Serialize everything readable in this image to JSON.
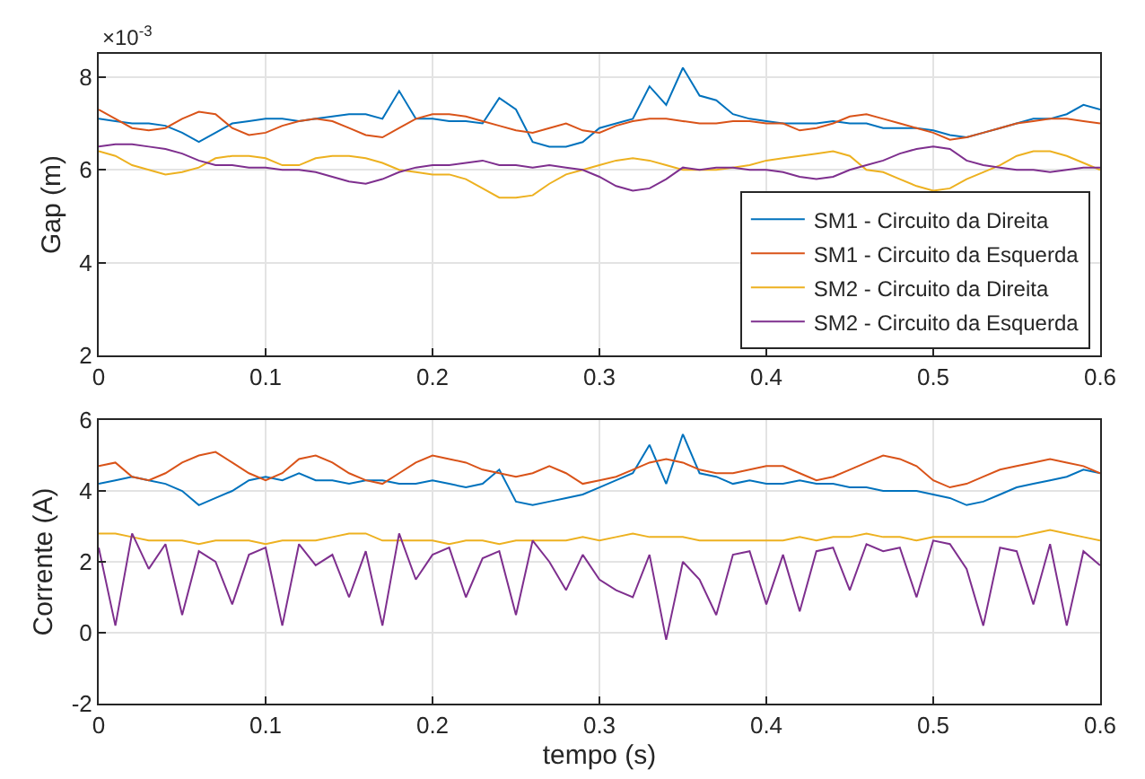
{
  "chart_data": [
    {
      "type": "line",
      "ylabel": "Gap (m)",
      "annotations": [
        "×10$^{-3}$"
      ],
      "x": [
        0,
        0.01,
        0.02,
        0.03,
        0.04,
        0.05,
        0.06,
        0.07,
        0.08,
        0.09,
        0.1,
        0.11,
        0.12,
        0.13,
        0.14,
        0.15,
        0.16,
        0.17,
        0.18,
        0.19,
        0.2,
        0.21,
        0.22,
        0.23,
        0.24,
        0.25,
        0.26,
        0.27,
        0.28,
        0.29,
        0.3,
        0.31,
        0.32,
        0.33,
        0.34,
        0.35,
        0.36,
        0.37,
        0.38,
        0.39,
        0.4,
        0.41,
        0.42,
        0.43,
        0.44,
        0.45,
        0.46,
        0.47,
        0.48,
        0.49,
        0.5,
        0.51,
        0.52,
        0.53,
        0.54,
        0.55,
        0.56,
        0.57,
        0.58,
        0.59,
        0.6
      ],
      "series": [
        {
          "name": "SM1 - Circuito da Direita",
          "color": "#0072bd",
          "values": [
            7.1,
            7.05,
            7.0,
            7.0,
            6.95,
            6.8,
            6.6,
            6.8,
            7.0,
            7.05,
            7.1,
            7.1,
            7.05,
            7.1,
            7.15,
            7.2,
            7.2,
            7.1,
            7.7,
            7.1,
            7.1,
            7.05,
            7.05,
            7.0,
            7.55,
            7.3,
            6.6,
            6.5,
            6.5,
            6.6,
            6.9,
            7.0,
            7.1,
            7.8,
            7.4,
            8.2,
            7.6,
            7.5,
            7.2,
            7.1,
            7.05,
            7.0,
            7.0,
            7.0,
            7.05,
            7.0,
            7.0,
            6.9,
            6.9,
            6.9,
            6.85,
            6.75,
            6.7,
            6.8,
            6.9,
            7.0,
            7.1,
            7.1,
            7.2,
            7.4,
            7.3
          ]
        },
        {
          "name": "SM1 - Circuito da Esquerda",
          "color": "#d95319",
          "values": [
            7.3,
            7.1,
            6.9,
            6.85,
            6.9,
            7.1,
            7.25,
            7.2,
            6.9,
            6.75,
            6.8,
            6.95,
            7.05,
            7.1,
            7.05,
            6.9,
            6.75,
            6.7,
            6.9,
            7.1,
            7.2,
            7.2,
            7.15,
            7.05,
            6.95,
            6.85,
            6.8,
            6.9,
            7.0,
            6.85,
            6.8,
            6.95,
            7.05,
            7.1,
            7.1,
            7.05,
            7.0,
            7.0,
            7.05,
            7.05,
            7.0,
            7.0,
            6.85,
            6.9,
            7.0,
            7.15,
            7.2,
            7.1,
            7.0,
            6.9,
            6.8,
            6.65,
            6.7,
            6.8,
            6.9,
            7.0,
            7.05,
            7.1,
            7.1,
            7.05,
            7.0
          ]
        },
        {
          "name": "SM2 - Circuito da Direita",
          "color": "#edb120",
          "values": [
            6.4,
            6.3,
            6.1,
            6.0,
            5.9,
            5.95,
            6.05,
            6.25,
            6.3,
            6.3,
            6.25,
            6.1,
            6.1,
            6.25,
            6.3,
            6.3,
            6.25,
            6.15,
            6.0,
            5.95,
            5.9,
            5.9,
            5.8,
            5.6,
            5.4,
            5.4,
            5.45,
            5.7,
            5.9,
            6.0,
            6.1,
            6.2,
            6.25,
            6.2,
            6.1,
            6.0,
            6.0,
            6.0,
            6.05,
            6.1,
            6.2,
            6.25,
            6.3,
            6.35,
            6.4,
            6.3,
            6.0,
            5.95,
            5.8,
            5.65,
            5.55,
            5.6,
            5.8,
            5.95,
            6.1,
            6.3,
            6.4,
            6.4,
            6.3,
            6.15,
            6.0
          ]
        },
        {
          "name": "SM2 - Circuito da Esquerda",
          "color": "#7e2f8e",
          "values": [
            6.5,
            6.55,
            6.55,
            6.5,
            6.45,
            6.35,
            6.2,
            6.1,
            6.1,
            6.05,
            6.05,
            6.0,
            6.0,
            5.95,
            5.85,
            5.75,
            5.7,
            5.8,
            5.95,
            6.05,
            6.1,
            6.1,
            6.15,
            6.2,
            6.1,
            6.1,
            6.05,
            6.1,
            6.05,
            6.0,
            5.85,
            5.65,
            5.55,
            5.6,
            5.8,
            6.05,
            6.0,
            6.05,
            6.05,
            6.0,
            6.0,
            5.95,
            5.85,
            5.8,
            5.85,
            6.0,
            6.1,
            6.2,
            6.35,
            6.45,
            6.5,
            6.45,
            6.2,
            6.1,
            6.05,
            6.0,
            6.0,
            5.95,
            6.0,
            6.05,
            6.05
          ]
        }
      ],
      "xlim": [
        0,
        0.6
      ],
      "xticks": [
        0,
        0.1,
        0.2,
        0.3,
        0.4,
        0.5,
        0.6
      ],
      "ylim": [
        2,
        8.5
      ],
      "yticks": [
        2,
        4,
        6,
        8
      ],
      "grid": true,
      "legend": "bottom right",
      "marker": "none",
      "line_style": "solid"
    },
    {
      "type": "line",
      "xlabel": "tempo (s)",
      "ylabel": "Corrente (A)",
      "x": [
        0,
        0.01,
        0.02,
        0.03,
        0.04,
        0.05,
        0.06,
        0.07,
        0.08,
        0.09,
        0.1,
        0.11,
        0.12,
        0.13,
        0.14,
        0.15,
        0.16,
        0.17,
        0.18,
        0.19,
        0.2,
        0.21,
        0.22,
        0.23,
        0.24,
        0.25,
        0.26,
        0.27,
        0.28,
        0.29,
        0.3,
        0.31,
        0.32,
        0.33,
        0.34,
        0.35,
        0.36,
        0.37,
        0.38,
        0.39,
        0.4,
        0.41,
        0.42,
        0.43,
        0.44,
        0.45,
        0.46,
        0.47,
        0.48,
        0.49,
        0.5,
        0.51,
        0.52,
        0.53,
        0.54,
        0.55,
        0.56,
        0.57,
        0.58,
        0.59,
        0.6
      ],
      "series": [
        {
          "color": "#0072bd",
          "values": [
            4.2,
            4.3,
            4.4,
            4.3,
            4.2,
            4.0,
            3.6,
            3.8,
            4.0,
            4.3,
            4.4,
            4.3,
            4.5,
            4.3,
            4.3,
            4.2,
            4.3,
            4.3,
            4.2,
            4.2,
            4.3,
            4.2,
            4.1,
            4.2,
            4.6,
            3.7,
            3.6,
            3.7,
            3.8,
            3.9,
            4.1,
            4.3,
            4.5,
            5.3,
            4.2,
            5.6,
            4.5,
            4.4,
            4.2,
            4.3,
            4.2,
            4.2,
            4.3,
            4.2,
            4.2,
            4.1,
            4.1,
            4.0,
            4.0,
            4.0,
            3.9,
            3.8,
            3.6,
            3.7,
            3.9,
            4.1,
            4.2,
            4.3,
            4.4,
            4.6,
            4.5
          ]
        },
        {
          "color": "#d95319",
          "values": [
            4.7,
            4.8,
            4.4,
            4.3,
            4.5,
            4.8,
            5.0,
            5.1,
            4.8,
            4.5,
            4.3,
            4.5,
            4.9,
            5.0,
            4.8,
            4.5,
            4.3,
            4.2,
            4.5,
            4.8,
            5.0,
            4.9,
            4.8,
            4.6,
            4.5,
            4.4,
            4.5,
            4.7,
            4.5,
            4.2,
            4.3,
            4.4,
            4.6,
            4.8,
            4.9,
            4.8,
            4.6,
            4.5,
            4.5,
            4.6,
            4.7,
            4.7,
            4.5,
            4.3,
            4.4,
            4.6,
            4.8,
            5.0,
            4.9,
            4.7,
            4.3,
            4.1,
            4.2,
            4.4,
            4.6,
            4.7,
            4.8,
            4.9,
            4.8,
            4.7,
            4.5
          ]
        },
        {
          "color": "#edb120",
          "values": [
            2.8,
            2.8,
            2.7,
            2.6,
            2.6,
            2.6,
            2.5,
            2.6,
            2.6,
            2.6,
            2.5,
            2.6,
            2.6,
            2.6,
            2.7,
            2.8,
            2.8,
            2.6,
            2.6,
            2.6,
            2.6,
            2.5,
            2.6,
            2.6,
            2.5,
            2.6,
            2.6,
            2.6,
            2.6,
            2.7,
            2.6,
            2.7,
            2.8,
            2.7,
            2.7,
            2.7,
            2.6,
            2.6,
            2.6,
            2.6,
            2.6,
            2.6,
            2.7,
            2.6,
            2.7,
            2.7,
            2.8,
            2.7,
            2.7,
            2.6,
            2.7,
            2.7,
            2.7,
            2.7,
            2.7,
            2.7,
            2.8,
            2.9,
            2.8,
            2.7,
            2.6
          ]
        },
        {
          "color": "#7e2f8e",
          "values": [
            2.4,
            0.2,
            2.8,
            1.8,
            2.5,
            0.5,
            2.3,
            2.0,
            0.8,
            2.2,
            2.4,
            0.2,
            2.5,
            1.9,
            2.2,
            1.0,
            2.3,
            0.2,
            2.8,
            1.5,
            2.2,
            2.4,
            1.0,
            2.1,
            2.3,
            0.5,
            2.6,
            2.0,
            1.2,
            2.2,
            1.5,
            1.2,
            1.0,
            2.2,
            -0.2,
            2.0,
            1.5,
            0.5,
            2.2,
            2.3,
            0.8,
            2.2,
            0.6,
            2.3,
            2.4,
            1.2,
            2.5,
            2.3,
            2.4,
            1.0,
            2.6,
            2.5,
            1.8,
            0.2,
            2.4,
            2.3,
            0.8,
            2.5,
            0.2,
            2.3,
            1.9
          ]
        }
      ],
      "xlim": [
        0,
        0.6
      ],
      "xticks": [
        0,
        0.1,
        0.2,
        0.3,
        0.4,
        0.5,
        0.6
      ],
      "ylim": [
        -2,
        6
      ],
      "yticks": [
        -2,
        0,
        2,
        4,
        6
      ],
      "grid": true,
      "marker": "none",
      "line_style": "solid"
    }
  ]
}
